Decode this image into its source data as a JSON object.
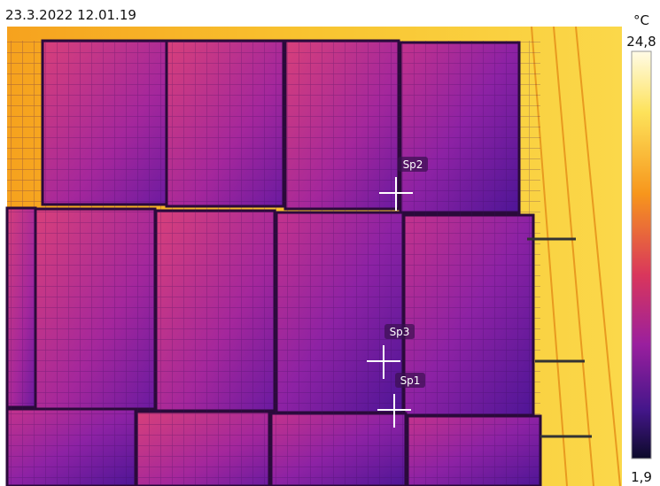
{
  "header": {
    "timestamp": "23.3.2022 12.01.19"
  },
  "scale": {
    "unit": "°C",
    "max": "24,8",
    "min": "1,9"
  },
  "spots": [
    {
      "label": "Sp1"
    },
    {
      "label": "Sp2"
    },
    {
      "label": "Sp3"
    }
  ]
}
